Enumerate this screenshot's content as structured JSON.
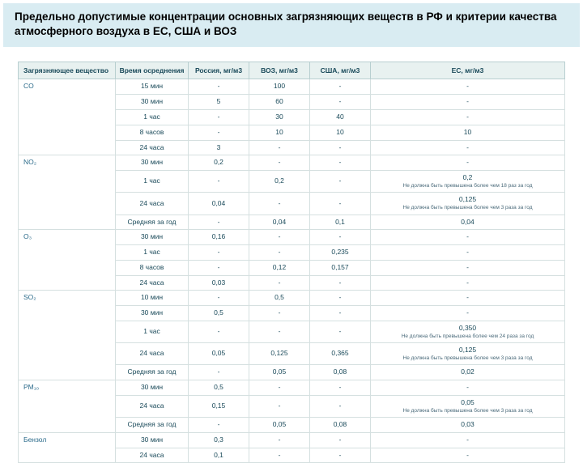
{
  "title": "Предельно допустимые концентрации основных загрязняющих веществ в РФ и критерии качества атмосферного воздуха в ЕС, США и ВОЗ",
  "headers": [
    "Загрязняющее вещество",
    "Время осреднения",
    "Россия, мг/м3",
    "ВОЗ, мг/м3",
    "США, мг/м3",
    "ЕС, мг/м3"
  ],
  "groups": [
    {
      "pollutant": "CO",
      "rows": [
        [
          "15 мин",
          "-",
          "100",
          "-",
          "-"
        ],
        [
          "30 мин",
          "5",
          "60",
          "-",
          "-"
        ],
        [
          "1 час",
          "-",
          "30",
          "40",
          "-"
        ],
        [
          "8 часов",
          "-",
          "10",
          "10",
          "10"
        ],
        [
          "24 часа",
          "3",
          "-",
          "-",
          "-"
        ]
      ]
    },
    {
      "pollutant": "NO₂",
      "rows": [
        [
          "30 мин",
          "0,2",
          "-",
          "-",
          "-"
        ],
        [
          "1 час",
          "-",
          "0,2",
          "-",
          "0,2|Не должна быть превышена более чем 18 раз за год"
        ],
        [
          "24 часа",
          "0,04",
          "-",
          "-",
          "0,125|Не должна быть превышена более чем 3 раза за год"
        ],
        [
          "Средняя за год",
          "-",
          "0,04",
          "0,1",
          "0,04"
        ]
      ]
    },
    {
      "pollutant": "O₃",
      "rows": [
        [
          "30 мин",
          "0,16",
          "-",
          "-",
          "-"
        ],
        [
          "1 час",
          "-",
          "-",
          "0,235",
          "-"
        ],
        [
          "8 часов",
          "-",
          "0,12",
          "0,157",
          "-"
        ],
        [
          "24 часа",
          "0,03",
          "-",
          "-",
          "-"
        ]
      ]
    },
    {
      "pollutant": "SO₂",
      "rows": [
        [
          "10 мин",
          "-",
          "0,5",
          "-",
          "-"
        ],
        [
          "30 мин",
          "0,5",
          "-",
          "-",
          "-"
        ],
        [
          "1 час",
          "-",
          "-",
          "-",
          "0,350|Не должна быть превышена более чем 24 раза за год"
        ],
        [
          "24 часа",
          "0,05",
          "0,125",
          "0,365",
          "0,125|Не должна быть превышена более чем 3 раза за год"
        ],
        [
          "Средняя за год",
          "-",
          "0,05",
          "0,08",
          "0,02"
        ]
      ]
    },
    {
      "pollutant": "PM₁₀",
      "rows": [
        [
          "30 мин",
          "0,5",
          "-",
          "-",
          "-"
        ],
        [
          "24 часа",
          "0,15",
          "-",
          "-",
          "0,05|Не должна быть превышена более чем 3 раза за год"
        ],
        [
          "Средняя за год",
          "-",
          "0,05",
          "0,08",
          "0,03"
        ]
      ]
    },
    {
      "pollutant": "Бензол",
      "rows": [
        [
          "30 мин",
          "0,3",
          "-",
          "-",
          "-"
        ],
        [
          "24 часа",
          "0,1",
          "-",
          "-",
          "-"
        ]
      ]
    }
  ]
}
